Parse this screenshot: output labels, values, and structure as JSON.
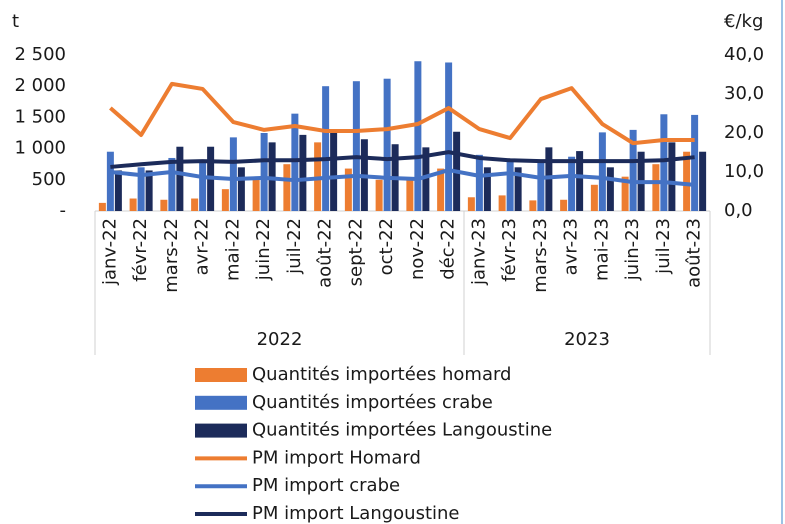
{
  "chart_data": {
    "type": "bar-line",
    "y_label": "t",
    "y2_label": "€/kg",
    "category_groups": [
      {
        "label": "2022",
        "categories": [
          "janv-22",
          "févr-22",
          "mars-22",
          "avr-22",
          "mai-22",
          "juin-22",
          "juil-22",
          "août-22",
          "sept-22",
          "oct-22",
          "nov-22",
          "déc-22"
        ]
      },
      {
        "label": "2023",
        "categories": [
          "janv-23",
          "févr-23",
          "mars-23",
          "avr-23",
          "mai-23",
          "juin-23",
          "juil-23",
          "août-23"
        ]
      }
    ],
    "series": [
      {
        "name": "Quantités importées homard",
        "type": "bar",
        "color": "#ed7d31",
        "values": [
          130,
          200,
          180,
          200,
          350,
          500,
          750,
          1100,
          680,
          500,
          500,
          680,
          220,
          250,
          170,
          180,
          420,
          550,
          750,
          950
        ]
      },
      {
        "name": "Quantités importées crabe",
        "type": "bar",
        "color": "#4472c4",
        "values": [
          950,
          700,
          850,
          800,
          1180,
          1250,
          1560,
          2000,
          2080,
          2120,
          2400,
          2380,
          900,
          800,
          800,
          870,
          1260,
          1300,
          1550,
          1540
        ]
      },
      {
        "name": "Quantités importées Langoustine",
        "type": "bar",
        "color": "#1c2b5a",
        "values": [
          650,
          650,
          1030,
          1030,
          700,
          1100,
          1220,
          1250,
          1150,
          1070,
          1020,
          1270,
          700,
          700,
          1020,
          960,
          700,
          950,
          1100,
          950
        ]
      },
      {
        "name": "PM import Homard",
        "type": "line",
        "axis": "y2",
        "color": "#ed7d31",
        "values": [
          26.4,
          19.5,
          32.6,
          31.3,
          22.8,
          20.8,
          21.8,
          20.5,
          20.5,
          21,
          22.3,
          26.4,
          21,
          18.7,
          28.7,
          31.5,
          22.3,
          17.4,
          18.2,
          18.2
        ]
      },
      {
        "name": "PM import crabe",
        "type": "line",
        "axis": "y2",
        "color": "#4472c4",
        "values": [
          10,
          9.2,
          10,
          8.7,
          8.2,
          8.5,
          7.9,
          8.5,
          9,
          8.5,
          8.2,
          10.5,
          9,
          9.7,
          8.5,
          9,
          8.5,
          7.4,
          7.4,
          6.7
        ]
      },
      {
        "name": "PM import Langoustine",
        "type": "line",
        "axis": "y2",
        "color": "#1c2b5a",
        "values": [
          11.3,
          12,
          12.6,
          12.8,
          12.6,
          13,
          13,
          13.3,
          13.8,
          13.3,
          13.8,
          15.1,
          13.6,
          13,
          12.8,
          12.8,
          12.8,
          12.8,
          13,
          13.8
        ]
      }
    ],
    "ylim": [
      0,
      2500
    ],
    "yticks": [
      {
        "value": 0,
        "label": "-"
      },
      500,
      {
        "value": 1000,
        "label": "1 000"
      },
      {
        "value": 1500,
        "label": "1 500"
      },
      {
        "value": 2000,
        "label": "2 000"
      },
      {
        "value": 2500,
        "label": "2 500"
      }
    ],
    "y2lim": [
      0,
      40
    ],
    "y2ticks": [
      {
        "value": 0,
        "label": "0,0"
      },
      {
        "value": 10,
        "label": "10,0"
      },
      {
        "value": 20,
        "label": "20,0"
      },
      {
        "value": 30,
        "label": "30,0"
      },
      {
        "value": 40,
        "label": "40,0"
      }
    ],
    "grid": false,
    "legend": "bottom"
  }
}
